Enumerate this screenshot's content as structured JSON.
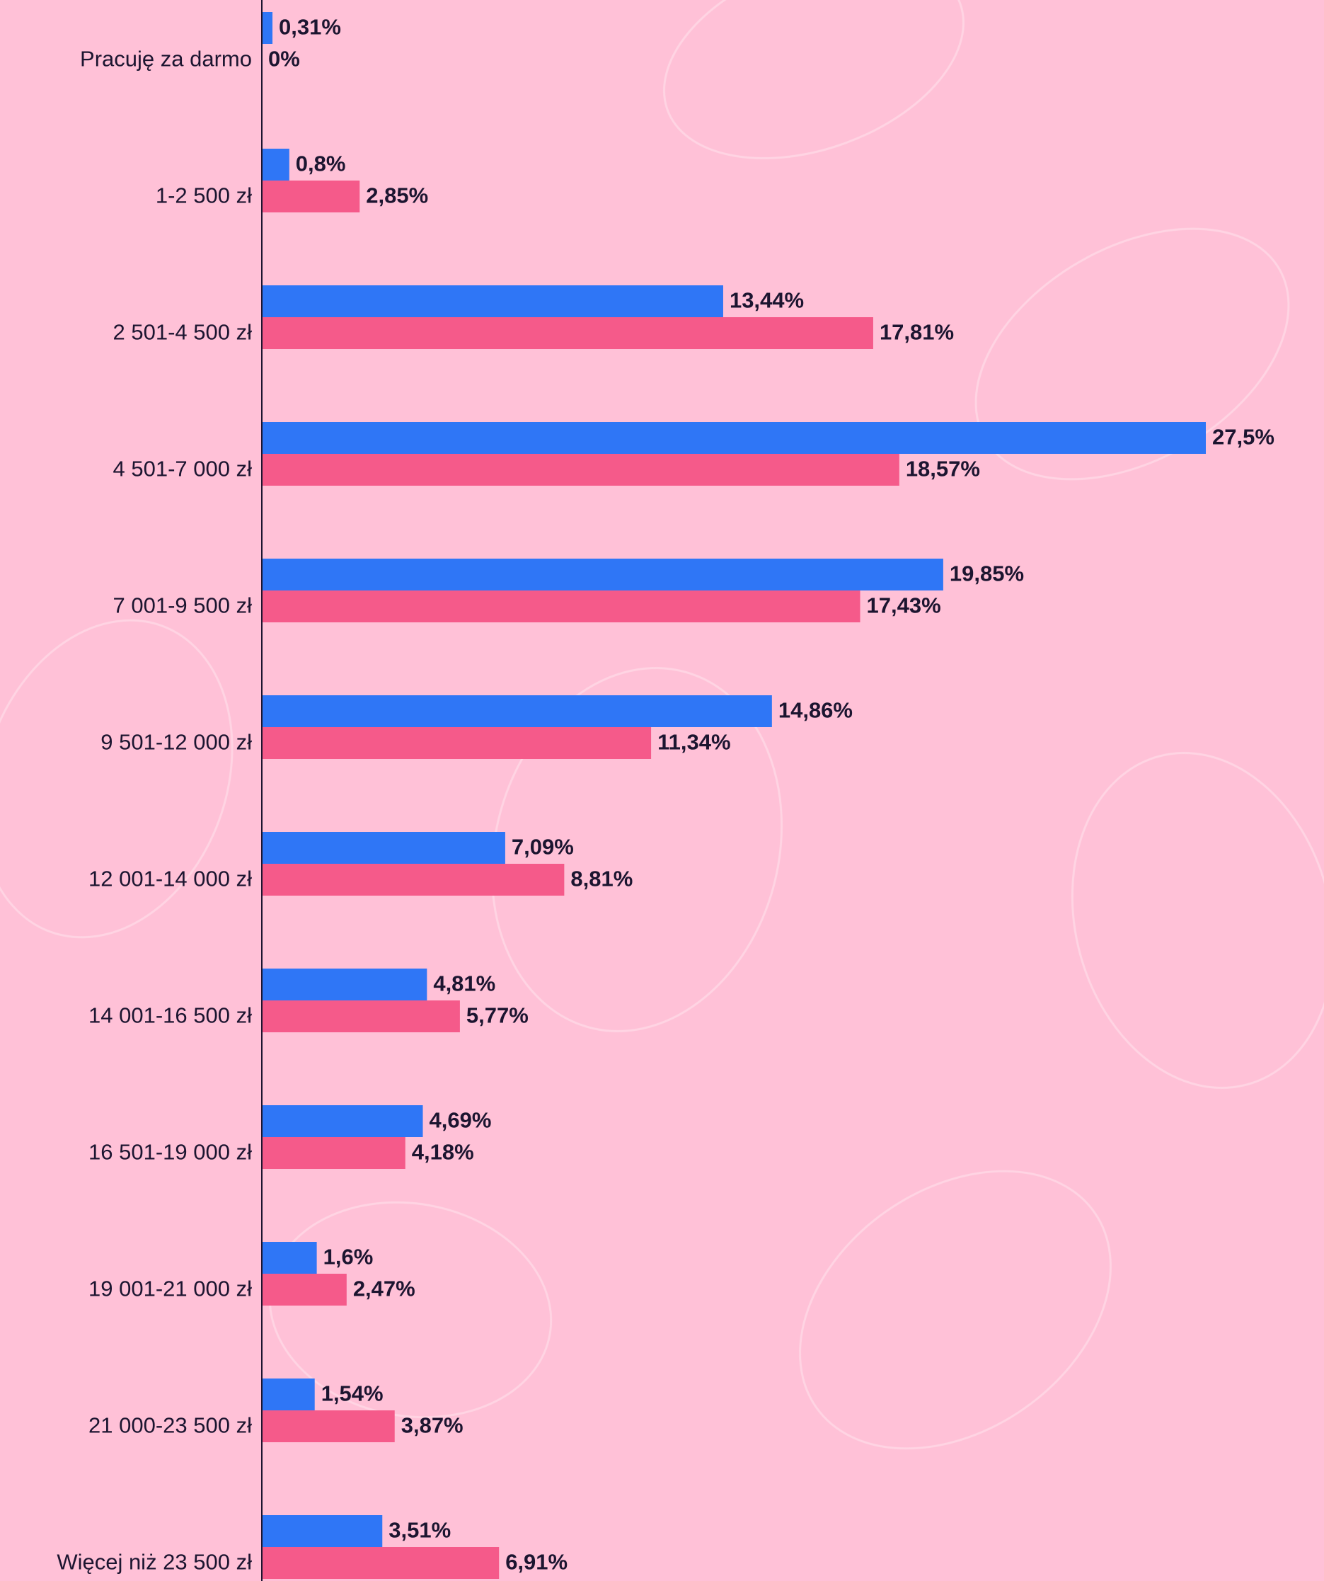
{
  "chart_data": {
    "type": "hbar",
    "categories": [
      "Pracuję za darmo",
      "1-2 500 zł",
      "2 501-4 500 zł",
      "4 501-7 000 zł",
      "7 001-9 500 zł",
      "9 501-12 000 zł",
      "12 001-14 000 zł",
      "14 001-16 500 zł",
      "16 501-19 000 zł",
      "19 001-21 000 zł",
      "21 000-23 500 zł",
      "Więcej niż 23 500 zł"
    ],
    "series": [
      {
        "color": "#2f76f6",
        "values": [
          0.31,
          0.8,
          13.44,
          27.5,
          19.85,
          14.86,
          7.09,
          4.81,
          4.69,
          1.6,
          1.54,
          3.51
        ],
        "value_labels": [
          "0,31%",
          "0,8%",
          "13,44%",
          "27,5%",
          "19,85%",
          "14,86%",
          "7,09%",
          "4,81%",
          "4,69%",
          "1,6%",
          "1,54%",
          "3,51%"
        ]
      },
      {
        "color": "#f55a8a",
        "values": [
          0,
          2.85,
          17.81,
          18.57,
          17.43,
          11.34,
          8.81,
          5.77,
          4.18,
          2.47,
          3.87,
          6.91
        ],
        "value_labels": [
          "0%",
          "2,85%",
          "17,81%",
          "18,57%",
          "17,43%",
          "11,34%",
          "8,81%",
          "5,77%",
          "4,18%",
          "2,47%",
          "3,87%",
          "6,91%"
        ]
      }
    ]
  }
}
